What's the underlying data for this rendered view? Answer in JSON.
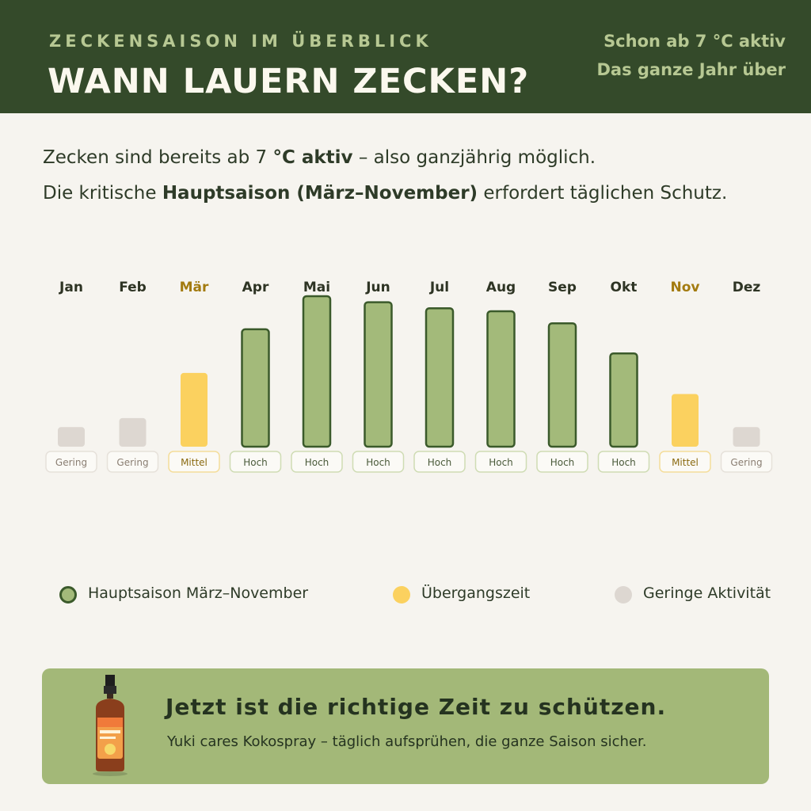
{
  "header": {
    "kicker": "ZECKENSAISON IM ÜBERBLICK",
    "title": "WANN LAUERN ZECKEN?",
    "right_line1": "Schon ab 7 °C aktiv",
    "right_line2": "Das ganze Jahr über"
  },
  "intro": {
    "line1_pre": "Zecken sind bereits ab 7 ",
    "line1_bold": "°C aktiv",
    "line1_post": " – also ganzjährig möglich.",
    "line2_pre": "Die kritische ",
    "line2_bold": "Hauptsaison (März–November)",
    "line2_post": " erfordert täglichen Schutz."
  },
  "chart_data": {
    "type": "bar",
    "categories": [
      "Jan",
      "Feb",
      "Mär",
      "Apr",
      "Mai",
      "Jun",
      "Jul",
      "Aug",
      "Sep",
      "Okt",
      "Nov",
      "Dez"
    ],
    "values": [
      13,
      19,
      49,
      78,
      100,
      96,
      92,
      90,
      82,
      62,
      35,
      13
    ],
    "levels": [
      "Gering",
      "Gering",
      "Mittel",
      "Hoch",
      "Hoch",
      "Hoch",
      "Hoch",
      "Hoch",
      "Hoch",
      "Hoch",
      "Mittel",
      "Gering"
    ],
    "categories_per_bar": [
      "low",
      "low",
      "transition",
      "main",
      "main",
      "main",
      "main",
      "main",
      "main",
      "main",
      "transition",
      "low"
    ],
    "title": "",
    "xlabel": "",
    "ylabel": "",
    "ylim": [
      0,
      100
    ],
    "grid": false,
    "legend_placement": "bottom"
  },
  "colors": {
    "main": "#a3ba7a",
    "main_border": "#3b5a2b",
    "transition": "#fbd15f",
    "low": "#ddd7d1",
    "highlight_label": "#a37b10",
    "dark_green": "#344a2a"
  },
  "legend": [
    {
      "label": "Hauptsaison März–November",
      "color": "#a3ba7a"
    },
    {
      "label": "Übergangszeit",
      "color": "#fbd15f"
    },
    {
      "label": "Geringe Aktivität",
      "color": "#ddd7d1"
    }
  ],
  "cta": {
    "title": "Jetzt ist die richtige Zeit zu schützen.",
    "subtitle": "Yuki cares Kokospray – täglich aufsprühen, die ganze Saison sicher."
  }
}
